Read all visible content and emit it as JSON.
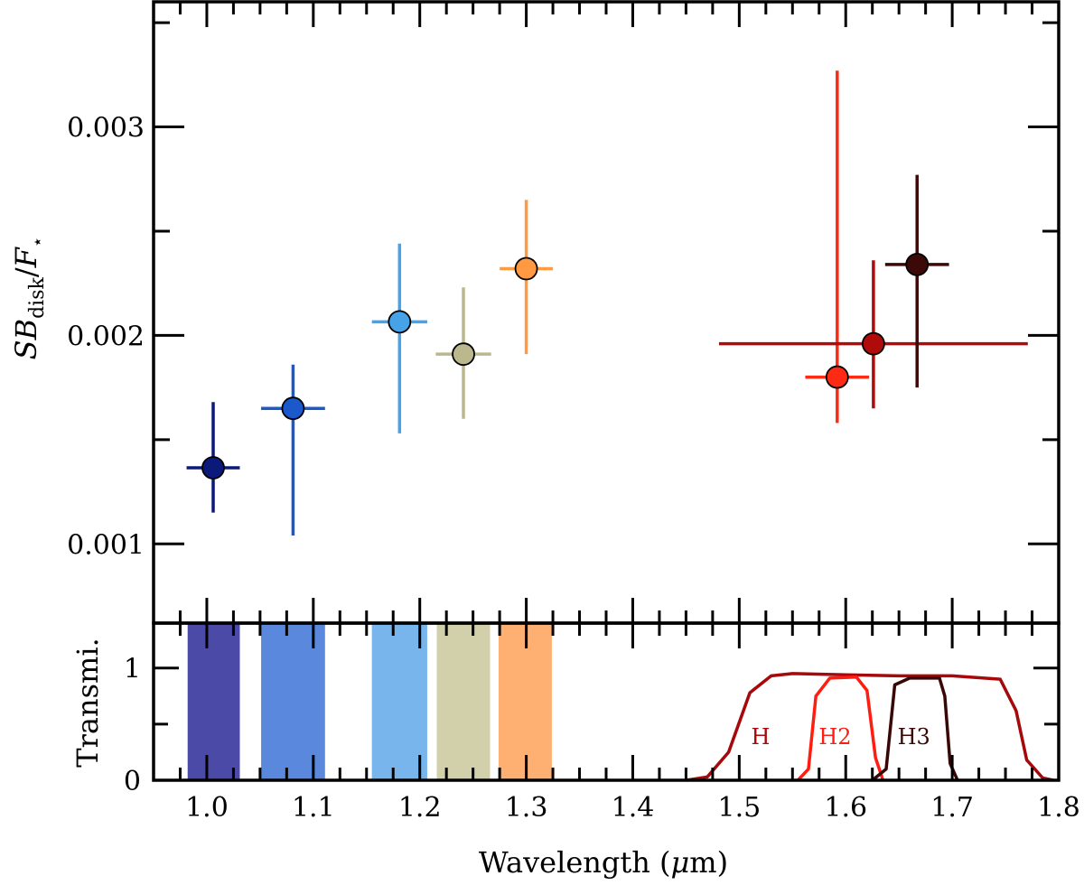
{
  "chart_data": [
    {
      "type": "scatter",
      "panel": "top",
      "ylabel": {
        "italic_main": "SB",
        "italic_sub_base": "B",
        "sub": "disk",
        "sep": "/",
        "italic_denom": "F",
        "denom_sub": "⋆"
      },
      "ylabel_text": "SB_disk/F⋆",
      "xlim": [
        0.95,
        1.8
      ],
      "ylim": [
        0.00062,
        0.0036
      ],
      "yticks": [
        0.001,
        0.002,
        0.003
      ],
      "ytick_labels": [
        "0.001",
        "0.002",
        "0.003"
      ],
      "points": [
        {
          "x": 1.006,
          "y": 0.001365,
          "xerr": 0.025,
          "ylow": 0.00115,
          "yhigh": 0.00168,
          "color": "#0b1a7a"
        },
        {
          "x": 1.081,
          "y": 0.00165,
          "xerr": 0.03,
          "ylow": 0.00104,
          "yhigh": 0.00186,
          "color": "#1a58cc"
        },
        {
          "x": 1.181,
          "y": 0.002065,
          "xerr": 0.026,
          "ylow": 0.00153,
          "yhigh": 0.00244,
          "color": "#47a3e8"
        },
        {
          "x": 1.241,
          "y": 0.00191,
          "xerr": 0.026,
          "ylow": 0.0016,
          "yhigh": 0.00223,
          "color": "#bcb88e"
        },
        {
          "x": 1.3,
          "y": 0.00232,
          "xerr": 0.025,
          "ylow": 0.00191,
          "yhigh": 0.00265,
          "color": "#ff9a42"
        },
        {
          "x": 1.592,
          "y": 0.0018,
          "xerr": 0.03,
          "ylow": 0.00158,
          "yhigh": 0.00327,
          "color": "#ff2a14"
        },
        {
          "x": 1.626,
          "y": 0.00196,
          "xerr": 0.145,
          "ylow": 0.00165,
          "yhigh": 0.00236,
          "color": "#b00b0b"
        },
        {
          "x": 1.667,
          "y": 0.00234,
          "xerr": 0.03,
          "ylow": 0.00175,
          "yhigh": 0.00277,
          "color": "#3d0808"
        }
      ]
    },
    {
      "type": "area",
      "panel": "bottom",
      "ylabel": "Transmi.",
      "xlabel": "Wavelength (μm)",
      "xlabel_prefix": "Wavelength (",
      "xlabel_mu": "μ",
      "xlabel_suffix": "m)",
      "xlim": [
        0.95,
        1.8
      ],
      "ylim": [
        0,
        1.4
      ],
      "yticks": [
        0,
        1
      ],
      "ytick_labels": [
        "0",
        "1"
      ],
      "xticks": [
        1.0,
        1.1,
        1.2,
        1.3,
        1.4,
        1.5,
        1.6,
        1.7,
        1.8
      ],
      "xtick_labels": [
        "1.0",
        "1.1",
        "1.2",
        "1.3",
        "1.4",
        "1.5",
        "1.6",
        "1.7",
        "1.8"
      ],
      "bands": [
        {
          "x0": 0.982,
          "x1": 1.031,
          "color": "#4b4aa6"
        },
        {
          "x0": 1.051,
          "x1": 1.111,
          "color": "#5a88dc"
        },
        {
          "x0": 1.155,
          "x1": 1.207,
          "color": "#78b5ec"
        },
        {
          "x0": 1.216,
          "x1": 1.266,
          "color": "#d2d0ab"
        },
        {
          "x0": 1.274,
          "x1": 1.324,
          "color": "#fdb071"
        }
      ],
      "filters": [
        {
          "name": "H",
          "color": "#a5090b",
          "points": [
            [
              1.45,
              0
            ],
            [
              1.47,
              0.03
            ],
            [
              1.49,
              0.25
            ],
            [
              1.51,
              0.78
            ],
            [
              1.53,
              0.93
            ],
            [
              1.55,
              0.95
            ],
            [
              1.6,
              0.94
            ],
            [
              1.65,
              0.93
            ],
            [
              1.7,
              0.93
            ],
            [
              1.745,
              0.9
            ],
            [
              1.76,
              0.62
            ],
            [
              1.77,
              0.18
            ],
            [
              1.785,
              0.02
            ],
            [
              1.795,
              0
            ]
          ]
        },
        {
          "name": "H2",
          "color": "#ff1d12",
          "points": [
            [
              1.555,
              0
            ],
            [
              1.565,
              0.1
            ],
            [
              1.572,
              0.75
            ],
            [
              1.585,
              0.91
            ],
            [
              1.61,
              0.92
            ],
            [
              1.62,
              0.8
            ],
            [
              1.628,
              0.2
            ],
            [
              1.635,
              0
            ]
          ]
        },
        {
          "name": "H3",
          "color": "#3a0707",
          "points": [
            [
              1.625,
              0
            ],
            [
              1.638,
              0.1
            ],
            [
              1.646,
              0.85
            ],
            [
              1.66,
              0.91
            ],
            [
              1.688,
              0.91
            ],
            [
              1.693,
              0.75
            ],
            [
              1.698,
              0.15
            ],
            [
              1.705,
              0
            ]
          ]
        }
      ],
      "filter_labels": [
        {
          "text": "H",
          "x": 1.52,
          "y": 0.32,
          "color": "#a5090b"
        },
        {
          "text": "H2",
          "x": 1.59,
          "y": 0.32,
          "color": "#ff1d12"
        },
        {
          "text": "H3",
          "x": 1.664,
          "y": 0.32,
          "color": "#3a0707"
        }
      ]
    }
  ]
}
